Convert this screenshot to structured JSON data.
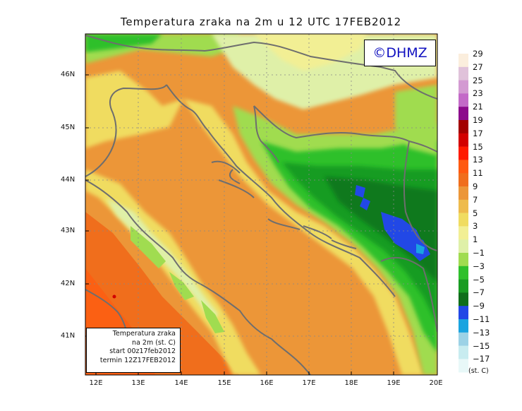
{
  "title": "Temperatura zraka na 2m u 12 UTC 17FEB2012",
  "copyright": "©DHMZ",
  "info_box": {
    "line1": "Temperatura zraka",
    "line2": "na 2m (st. C)",
    "line3": "start 00z17feb2012",
    "line4": "termin 12Z17FEB2012"
  },
  "axes": {
    "lat_labels": [
      "46N",
      "45N",
      "44N",
      "43N",
      "42N",
      "41N"
    ],
    "lon_labels": [
      "12E",
      "13E",
      "14E",
      "15E",
      "16E",
      "17E",
      "18E",
      "19E",
      "20E"
    ]
  },
  "legend": {
    "unit": "(st. C)",
    "labels": [
      "29",
      "27",
      "25",
      "23",
      "21",
      "19",
      "17",
      "15",
      "13",
      "11",
      "9",
      "7",
      "5",
      "3",
      "1",
      "−1",
      "−3",
      "−5",
      "−7",
      "−9",
      "−11",
      "−13",
      "−15",
      "−17"
    ],
    "colors": [
      "#fbeedd",
      "#e0c2da",
      "#d39ad2",
      "#c36ac8",
      "#8c0a8c",
      "#a30000",
      "#d20000",
      "#ff1a00",
      "#ff5a10",
      "#f06e1c",
      "#ec9638",
      "#eebb4c",
      "#f0dc60",
      "#f2ef94",
      "#dff0a8",
      "#a0dc50",
      "#2fc02c",
      "#199c22",
      "#0f6e1a",
      "#2248e6",
      "#1aa4e0",
      "#9cd2e6",
      "#c8ecf0",
      "#e8f8f8"
    ]
  },
  "colors": {
    "coast": "#6e6e6e",
    "grid": "#888888",
    "sea_warm": "#ec9638",
    "cold_zone": "#199c22"
  }
}
